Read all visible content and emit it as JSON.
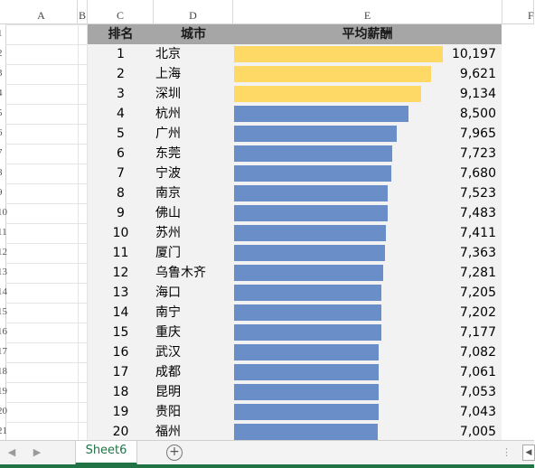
{
  "columns": [
    "A",
    "B",
    "C",
    "D",
    "E",
    "F"
  ],
  "row_numbers": [
    "1",
    "2",
    "3",
    "4",
    "5",
    "6",
    "7",
    "8",
    "9",
    "10",
    "11",
    "12",
    "13",
    "14",
    "15",
    "16",
    "17",
    "18",
    "19",
    "20",
    "21"
  ],
  "table": {
    "headers": {
      "rank": "排名",
      "city": "城市",
      "salary": "平均薪酬"
    }
  },
  "chart_data": {
    "type": "bar",
    "categories": [
      "北京",
      "上海",
      "深圳",
      "杭州",
      "广州",
      "东莞",
      "宁波",
      "南京",
      "佛山",
      "苏州",
      "厦门",
      "乌鲁木齐",
      "海口",
      "南宁",
      "重庆",
      "武汉",
      "成都",
      "昆明",
      "贵阳",
      "福州"
    ],
    "ranks": [
      "1",
      "2",
      "3",
      "4",
      "5",
      "6",
      "7",
      "8",
      "9",
      "10",
      "11",
      "12",
      "13",
      "14",
      "15",
      "16",
      "17",
      "18",
      "19",
      "20"
    ],
    "values": [
      10197,
      9621,
      9134,
      8500,
      7965,
      7723,
      7680,
      7523,
      7483,
      7411,
      7363,
      7281,
      7205,
      7202,
      7177,
      7082,
      7061,
      7053,
      7043,
      7005
    ],
    "value_labels": [
      "10,197",
      "9,621",
      "9,134",
      "8,500",
      "7,965",
      "7,723",
      "7,680",
      "7,523",
      "7,483",
      "7,411",
      "7,363",
      "7,281",
      "7,205",
      "7,202",
      "7,177",
      "7,082",
      "7,061",
      "7,053",
      "7,043",
      "7,005"
    ],
    "highlight_top": 3,
    "colors": {
      "highlight": "#ffd966",
      "normal": "#6a8fc8"
    },
    "xlim": [
      0,
      10197
    ]
  },
  "sheet_tabs": [
    "Sheet6"
  ],
  "icons": {
    "add_sheet": "plus-circle-icon",
    "prev": "chevron-left-icon",
    "next": "chevron-right-icon"
  }
}
